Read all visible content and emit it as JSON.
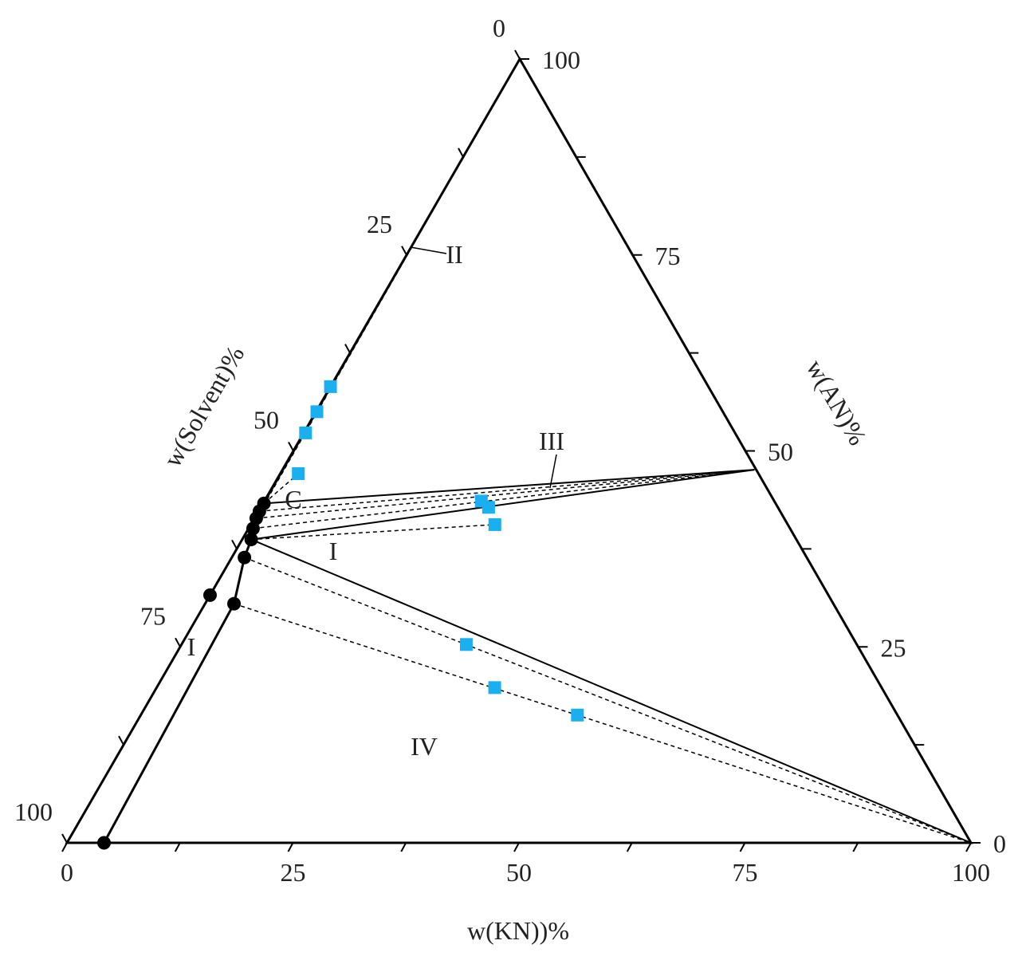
{
  "chart_data": {
    "type": "ternary",
    "bottom_axis": {
      "title": "w(KN))%",
      "ticks": [
        0,
        25,
        50,
        75,
        100
      ]
    },
    "right_axis": {
      "title": "w(AN)%",
      "ticks": [
        0,
        25,
        50,
        75,
        100
      ]
    },
    "left_axis": {
      "title": "w(Solvent)%",
      "ticks": [
        0,
        25,
        50,
        75,
        100
      ]
    },
    "minor_ticks": [
      12.5,
      37.5,
      62.5,
      87.5
    ],
    "liquid": {
      "color": "#000000",
      "kn": [
        4.1,
        3.2,
        1.4,
        1.0,
        0.5,
        0.2,
        0.1,
        0.1
      ],
      "an": [
        0,
        30.5,
        36.4,
        38.7,
        40.1,
        41.4,
        42.3,
        43.3
      ]
    },
    "edge_point": {
      "color": "#000000",
      "kn": [
        0
      ],
      "an": [
        31.6
      ]
    },
    "feed": {
      "color": "#1ab0ef",
      "kn": [
        0,
        0.1,
        0.2,
        2.0,
        24.0,
        25.2,
        27.0,
        31.5,
        37.4,
        48.3
      ],
      "an": [
        58.2,
        55.0,
        52.3,
        47.1,
        43.6,
        42.8,
        40.6,
        25.3,
        19.8,
        16.3
      ]
    },
    "tie_lines": [
      {
        "style": "solid",
        "kn": [
          0.1,
          52.2
        ],
        "an": [
          43.3,
          47.6
        ]
      },
      {
        "style": "solid",
        "kn": [
          1.0,
          52.2
        ],
        "an": [
          38.7,
          47.6
        ]
      },
      {
        "style": "solid",
        "kn": [
          1.0,
          100
        ],
        "an": [
          38.7,
          0
        ]
      },
      {
        "style": "solid",
        "kn": [
          0.1,
          0
        ],
        "an": [
          43.3,
          100
        ]
      },
      {
        "style": "dashed",
        "kn": [
          0.1,
          52.2
        ],
        "an": [
          42.3,
          47.6
        ]
      },
      {
        "style": "dashed",
        "kn": [
          0.2,
          52.2
        ],
        "an": [
          41.4,
          47.6
        ]
      },
      {
        "style": "dashed",
        "kn": [
          0.5,
          52.2
        ],
        "an": [
          40.1,
          47.6
        ]
      },
      {
        "style": "dashed",
        "kn": [
          1.0,
          27.0
        ],
        "an": [
          38.7,
          40.6
        ]
      },
      {
        "style": "dashed",
        "kn": [
          1.4,
          100
        ],
        "an": [
          36.4,
          0
        ]
      },
      {
        "style": "dashed",
        "kn": [
          3.2,
          100
        ],
        "an": [
          30.5,
          0
        ]
      },
      {
        "style": "dashed",
        "kn": [
          0.1,
          2.0
        ],
        "an": [
          43.3,
          47.1
        ]
      },
      {
        "style": "dashed",
        "kn": [
          0.2,
          0
        ],
        "an": [
          43.0,
          100
        ]
      }
    ],
    "annotations": [
      "I",
      "I",
      "II",
      "III",
      "IV",
      "C"
    ]
  }
}
